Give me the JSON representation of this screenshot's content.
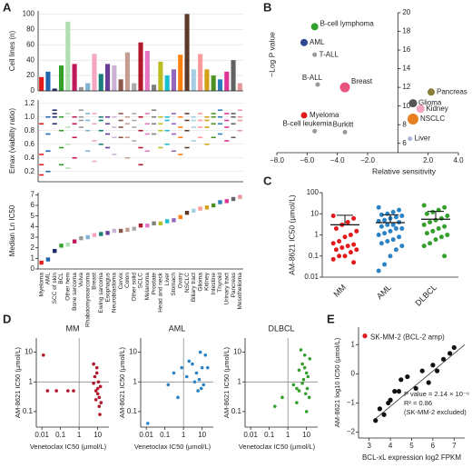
{
  "chart_data": [
    {
      "type": "bar",
      "panel": "A",
      "ylabel": "Cell lines (n)",
      "ylim": [
        0,
        104
      ],
      "yticks": [
        0,
        20,
        40,
        60,
        80,
        100
      ],
      "grid": true,
      "colors": [
        "#e31a1c",
        "#2166ac",
        "#1f2d6b",
        "#33a02c",
        "#b2dfb2",
        "#c2185b",
        "#999999",
        "#7fb3d5",
        "#f4a6c0",
        "#1b7c7c",
        "#6a3d9a",
        "#cab2d6",
        "#8c564b",
        "#c49c94",
        "#aaaaaa",
        "#b2182b",
        "#e377c2",
        "#7f7f7f",
        "#bcbd22",
        "#17becf",
        "#9467bd",
        "#ff7f0e",
        "#5b3a29",
        "#a6cee3",
        "#fb9a99",
        "#d4a017",
        "#4d9221",
        "#2c7fb8",
        "#dd3497",
        "#636363",
        "#e7969c"
      ],
      "values": [
        18,
        25,
        3,
        33,
        90,
        35,
        5,
        10,
        48,
        22,
        35,
        33,
        15,
        50,
        10,
        63,
        52,
        8,
        38,
        20,
        28,
        47,
        100,
        28,
        48,
        28,
        20,
        15,
        25,
        40,
        10
      ]
    },
    {
      "type": "strip",
      "ylabel": "Emax (viability ratio)",
      "ylim": [
        0.05,
        1.25
      ],
      "yticks": [
        0.2,
        0.4,
        0.6,
        0.8,
        {
          "value": 1,
          "label": "1.0"
        },
        1.2
      ],
      "grid": true,
      "values": [
        [
          0.15,
          0.3,
          0.45,
          0.9
        ],
        [
          0.2,
          0.5,
          0.75,
          1.0
        ],
        [
          0.9,
          1.0,
          1.05,
          1.1
        ],
        [
          0.3,
          0.55,
          0.8,
          1.0
        ],
        [
          0.25,
          0.6,
          0.85,
          1.05
        ],
        [
          0.4,
          0.7,
          0.9,
          1.0
        ],
        [
          0.85,
          0.95,
          1.0,
          1.1
        ],
        [
          0.5,
          0.8,
          0.95,
          1.05
        ],
        [
          0.35,
          0.65,
          0.9,
          1.05
        ],
        [
          0.6,
          0.8,
          0.95,
          1.0
        ],
        [
          0.55,
          0.75,
          0.9,
          1.0
        ],
        [
          0.45,
          0.7,
          0.85,
          1.0
        ],
        [
          0.7,
          0.85,
          0.95,
          1.05
        ],
        [
          0.4,
          0.7,
          0.9,
          1.0
        ],
        [
          0.65,
          0.85,
          0.95,
          1.05
        ],
        [
          0.3,
          0.55,
          0.8,
          1.0
        ],
        [
          0.5,
          0.75,
          0.9,
          1.05
        ],
        [
          0.75,
          0.9,
          1.0,
          1.1
        ],
        [
          0.55,
          0.8,
          0.9,
          1.0
        ],
        [
          0.6,
          0.8,
          0.95,
          1.0
        ],
        [
          0.5,
          0.75,
          0.9,
          1.05
        ],
        [
          0.45,
          0.7,
          0.85,
          1.0
        ],
        [
          0.55,
          0.8,
          0.95,
          1.05
        ],
        [
          0.65,
          0.85,
          0.95,
          1.0
        ],
        [
          0.7,
          0.85,
          0.95,
          1.05
        ],
        [
          0.6,
          0.85,
          0.95,
          1.0
        ],
        [
          0.7,
          0.9,
          1.0,
          1.05
        ],
        [
          0.75,
          0.9,
          1.0,
          1.1
        ],
        [
          0.65,
          0.85,
          0.95,
          1.05
        ],
        [
          0.7,
          0.9,
          1.0,
          1.05
        ],
        [
          0.8,
          0.95,
          1.0,
          1.1
        ]
      ]
    },
    {
      "type": "dot",
      "ylabel": "Median Ln IC50",
      "ylim": [
        0,
        7.2
      ],
      "yticks": [
        0,
        1,
        2,
        3,
        4,
        5,
        6,
        7
      ],
      "categories": [
        "Myeloma",
        "AML",
        "SCC of skin",
        "BCL",
        "Other hem",
        "Bone sarcoma",
        "Vulva",
        "Rhabdomyosarcoma",
        "Breast",
        "Ewing sarcoma",
        "Esophagus",
        "Neuroblastoma",
        "Cervix",
        "Colon",
        "Other solid",
        "SCLC",
        "Melanoma",
        "Prostate",
        "Head and neck",
        "Liver",
        "Stomach",
        "Ovary",
        "NSCLC",
        "Biliary tract",
        "Glioma",
        "Kidney",
        "Intestine",
        "Thyroid",
        "Urinary tract",
        "Pancreas",
        "Mesothelioma"
      ],
      "values": [
        0.6,
        0.9,
        1.7,
        2.2,
        2.3,
        2.6,
        2.9,
        3.0,
        3.2,
        3.3,
        3.4,
        3.6,
        3.6,
        3.7,
        3.8,
        4.1,
        4.1,
        4.3,
        4.3,
        4.5,
        4.6,
        4.9,
        5.3,
        5.5,
        5.7,
        5.8,
        6.0,
        6.3,
        6.4,
        6.6,
        6.8
      ]
    },
    {
      "type": "scatter",
      "panel": "B",
      "xlabel": "Relative sensitivity",
      "ylabel": "−Log P value",
      "xlim": [
        -8,
        4
      ],
      "xticks": [
        {
          "value": -8,
          "label": "−8.0"
        },
        {
          "value": -6,
          "label": "−6.0"
        },
        {
          "value": -4,
          "label": "−4.0"
        },
        {
          "value": -2,
          "label": "−2.0"
        },
        {
          "value": 2,
          "label": "2.0"
        },
        {
          "value": 4,
          "label": "4.0"
        }
      ],
      "ylim": [
        5,
        20
      ],
      "yticks": [
        6,
        8,
        10,
        12,
        14,
        16,
        18,
        20
      ],
      "labels": [
        "B-cell lymphoma",
        "AML",
        "T-ALL",
        "B-ALL",
        "Breast",
        "Myeloma",
        "B-cell leukemia",
        "Burkitt",
        "Pancreas",
        "Glioma",
        "Kidney",
        "NSCLC",
        "Liver"
      ],
      "x": [
        -5.5,
        -6.2,
        -5.5,
        -5.3,
        -3.5,
        -6.2,
        -5.5,
        -3.5,
        2.2,
        1.0,
        1.5,
        1.0,
        0.8
      ],
      "values": [
        18.5,
        16.8,
        15.5,
        12.3,
        12.0,
        9.0,
        7.3,
        7.2,
        11.5,
        10.3,
        9.7,
        8.6,
        6.5
      ],
      "sizes": [
        4,
        4,
        2.5,
        2.5,
        5.5,
        3.5,
        2.5,
        2.5,
        4,
        4.5,
        4.5,
        6,
        2.5
      ],
      "colors": [
        "#33a02c",
        "#2c4a8c",
        "#999999",
        "#999999",
        "#e75480",
        "#e31a1c",
        "#999999",
        "#999999",
        "#8b7d3a",
        "#555555",
        "#f4a6c0",
        "#e67e22",
        "#aab4d8"
      ]
    },
    {
      "type": "dotplot",
      "panel": "C",
      "ylabel": "AM-8621 IC50 (µmol/L)",
      "log": true,
      "ylim": [
        0.01,
        100
      ],
      "yticks": [
        0.01,
        0.1,
        1,
        10,
        100
      ],
      "series": [
        {
          "name": "MM",
          "color": "#e31a1c",
          "values": [
            8,
            6,
            4,
            3,
            2,
            1.5,
            1,
            0.8,
            0.5,
            0.4,
            0.35,
            0.3,
            0.25,
            0.2,
            0.2,
            0.15,
            0.1,
            0.1,
            0.07,
            0.05
          ],
          "mean": 3,
          "upper": 8.5
        },
        {
          "name": "AML",
          "color": "#2b83c6",
          "values": [
            20,
            15,
            12,
            10,
            9,
            8,
            7,
            6,
            5,
            4.5,
            4,
            3,
            3,
            2.5,
            2,
            2,
            1.5,
            1.2,
            1,
            0.8,
            0.6,
            0.5,
            0.4,
            0.3,
            0.2,
            0.1,
            0.04,
            0.02
          ],
          "mean": 3.8,
          "upper": 9
        },
        {
          "name": "DLBCL",
          "color": "#33a02c",
          "values": [
            25,
            20,
            15,
            12,
            10,
            8,
            6,
            5,
            4,
            3,
            2.5,
            2,
            1.5,
            1.2,
            1,
            0.8,
            0.6,
            0.4,
            0.3,
            0.1
          ],
          "mean": 5.5,
          "upper": 13
        }
      ]
    },
    {
      "type": "scatter-log",
      "panel": "D",
      "title": "MM",
      "color": "#b2182b",
      "xlabel": "Venetoclax IC50 (µmol/L)",
      "ylabel": "AM-8621 IC50 (µmol/L)",
      "xlim": [
        0.005,
        40
      ],
      "xticks": [
        0.01,
        0.1,
        1,
        10
      ],
      "ylim": [
        0.03,
        30
      ],
      "yticks": [
        0.1,
        1,
        10
      ],
      "x": [
        0.012,
        0.06,
        0.25,
        0.5,
        0.02,
        6,
        8,
        10,
        12,
        15,
        7,
        9,
        11,
        14,
        6,
        10,
        12,
        8,
        13,
        9
      ],
      "values": [
        8,
        0.5,
        0.5,
        0.5,
        0.5,
        0.9,
        0.5,
        0.4,
        0.3,
        0.2,
        1.5,
        2,
        1,
        0.7,
        4,
        0.6,
        0.15,
        0.25,
        0.08,
        3
      ]
    },
    {
      "type": "scatter-log",
      "title": "AML",
      "color": "#2b83c6",
      "xlabel": "Venetoclax IC50 (µmol/L)",
      "ylabel": "AM-8621 IC50 (µmol/L)",
      "xlim": [
        0.005,
        40
      ],
      "xticks": [
        0.01,
        0.1,
        1,
        10
      ],
      "ylim": [
        0.03,
        30
      ],
      "yticks": [
        0.1,
        1,
        10
      ],
      "x": [
        0.012,
        0.5,
        0.15,
        0.3,
        0.8,
        1.5,
        2,
        3,
        5,
        7,
        10,
        12,
        15,
        8,
        6,
        20,
        4,
        9
      ],
      "values": [
        0.04,
        0.3,
        0.8,
        2,
        3,
        1.5,
        5,
        4,
        2,
        1.2,
        3,
        0.8,
        8,
        10,
        0.5,
        3,
        1,
        0.6
      ]
    },
    {
      "type": "scatter-log",
      "title": "DLBCL",
      "color": "#33a02c",
      "xlabel": "Venetoclax IC50 (µmol/L)",
      "ylabel": "AM-8621 IC50 (µmol/L)",
      "xlim": [
        0.005,
        40
      ],
      "xticks": [
        0.01,
        0.1,
        1,
        10
      ],
      "ylim": [
        0.03,
        30
      ],
      "yticks": [
        0.1,
        1,
        10
      ],
      "x": [
        0.2,
        0.5,
        2,
        3,
        4,
        5,
        6,
        8,
        10,
        12,
        15,
        6,
        7,
        9,
        11,
        14,
        4,
        3,
        10,
        8
      ],
      "values": [
        0.15,
        0.3,
        0.8,
        0.6,
        0.5,
        12,
        4,
        3,
        2,
        1.5,
        6,
        0.9,
        1.2,
        0.4,
        0.6,
        0.3,
        2.5,
        0.2,
        0.1,
        8
      ]
    },
    {
      "type": "regression",
      "panel": "E",
      "xlabel": "BCL-xL expression log2 FPKM",
      "ylabel": "AM-8621 log10 IC50 (µmol/L)",
      "xlim": [
        2.5,
        7.5
      ],
      "xticks": [
        3,
        4,
        5,
        6,
        7
      ],
      "ylim": [
        -2.2,
        1.6
      ],
      "yticks": [
        {
          "value": -2,
          "label": "−2"
        },
        {
          "value": -1,
          "label": "−1"
        },
        0,
        1
      ],
      "x": [
        3.3,
        3.5,
        3.7,
        3.9,
        4.0,
        4.2,
        4.4,
        4.5,
        4.8,
        5.2,
        5.5,
        5.8,
        6.0,
        6.2,
        6.5,
        6.8,
        7.0
      ],
      "values": [
        -1.6,
        -1.2,
        -1.4,
        -1.0,
        -0.9,
        -0.6,
        -0.6,
        -0.2,
        -0.1,
        -0.5,
        0.1,
        -0.3,
        0.3,
        0.1,
        0.5,
        0.7,
        0.9
      ],
      "outlier": {
        "label": "SK-MM-2 (BCL-2 amp)",
        "x": 2.8,
        "value": 1.3,
        "color": "#e31a1c"
      },
      "trend": {
        "x": [
          3.2,
          7.5
        ],
        "values": [
          -1.6,
          1.0
        ]
      },
      "annotations": [
        "P value = 2.14 × 10⁻⁶",
        "R² = 0.86",
        "(SK-MM-2 excluded)"
      ]
    }
  ]
}
